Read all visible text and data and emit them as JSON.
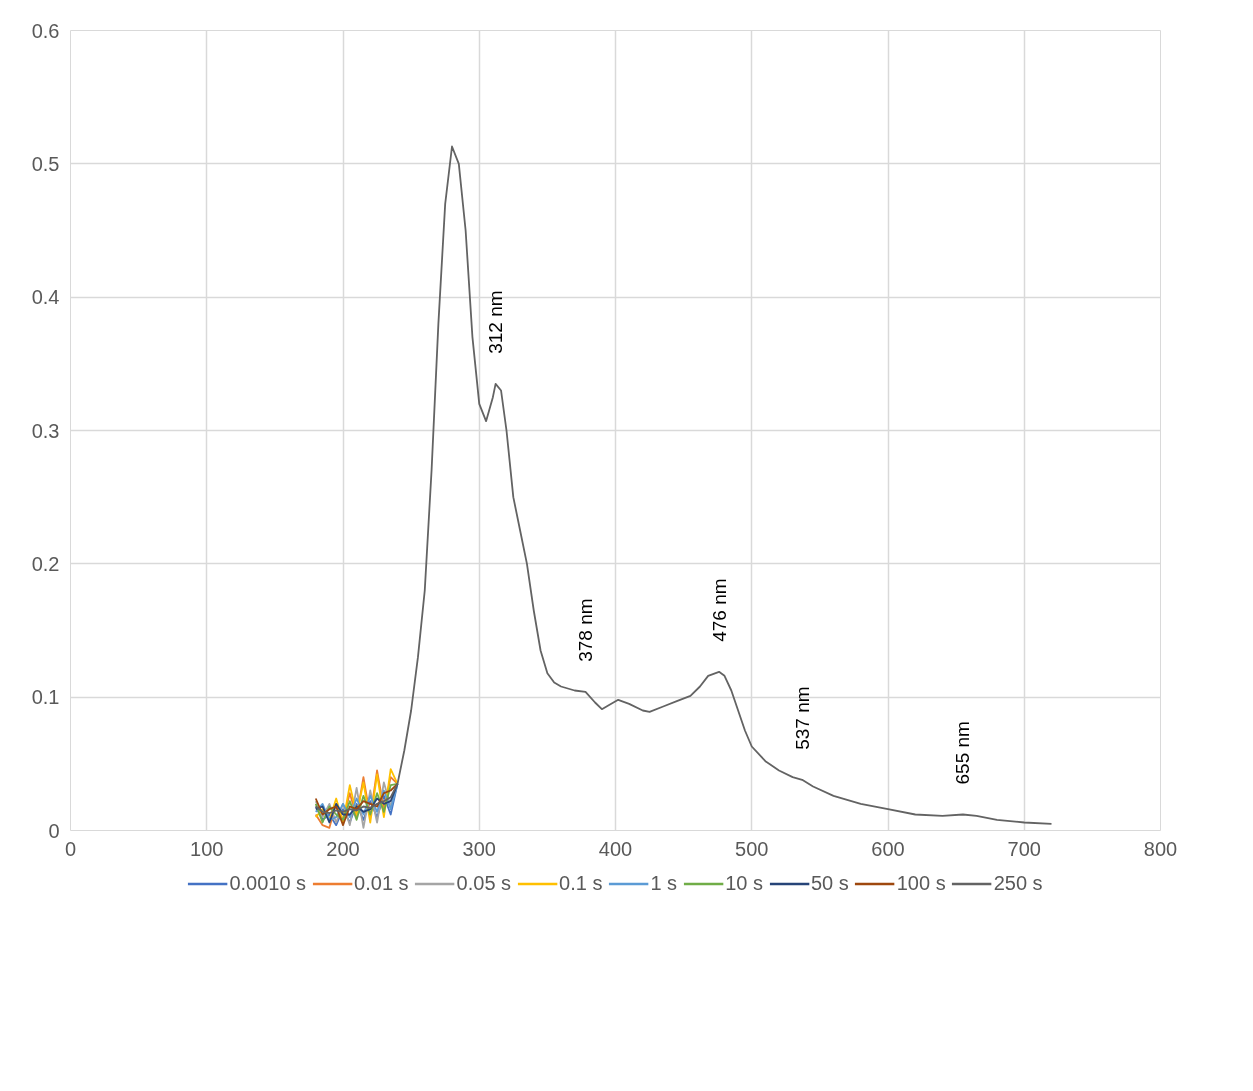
{
  "chart_data": {
    "type": "line",
    "x": [
      180,
      185,
      190,
      195,
      200,
      205,
      210,
      215,
      220,
      225,
      230,
      235,
      240,
      245,
      250,
      255,
      260,
      265,
      270,
      275,
      280,
      285,
      290,
      295,
      300,
      305,
      310,
      312,
      316,
      320,
      325,
      330,
      335,
      340,
      345,
      350,
      355,
      360,
      370,
      378,
      385,
      390,
      395,
      402,
      410,
      420,
      425,
      435,
      445,
      455,
      462,
      468,
      476,
      480,
      485,
      490,
      495,
      500,
      510,
      520,
      530,
      537,
      545,
      560,
      580,
      600,
      620,
      640,
      655,
      665,
      680,
      700,
      720
    ],
    "series": [
      {
        "name": "0.0010 s",
        "color": "#4472c4",
        "x": [
          180,
          185,
          190,
          195,
          200,
          205,
          210,
          215,
          220,
          225,
          230,
          235,
          240
        ],
        "values": [
          0.018,
          0.008,
          0.012,
          0.004,
          0.016,
          0.006,
          0.02,
          0.008,
          0.022,
          0.01,
          0.026,
          0.012,
          0.035
        ]
      },
      {
        "name": "0.01 s",
        "color": "#ed7d31",
        "x": [
          180,
          185,
          190,
          195,
          200,
          205,
          210,
          215,
          220,
          225,
          230,
          235,
          240
        ],
        "values": [
          0.012,
          0.004,
          0.002,
          0.02,
          0.008,
          0.028,
          0.01,
          0.04,
          0.01,
          0.045,
          0.016,
          0.04,
          0.035
        ]
      },
      {
        "name": "0.05 s",
        "color": "#a5a5a5",
        "x": [
          180,
          185,
          190,
          195,
          200,
          205,
          210,
          215,
          220,
          225,
          230,
          235,
          240
        ],
        "values": [
          0.022,
          0.01,
          0.02,
          0.006,
          0.02,
          0.004,
          0.032,
          0.002,
          0.03,
          0.006,
          0.036,
          0.018,
          0.035
        ]
      },
      {
        "name": "0.1 s",
        "color": "#ffc000",
        "x": [
          180,
          185,
          190,
          195,
          200,
          205,
          210,
          215,
          220,
          225,
          230,
          235,
          240
        ],
        "values": [
          0.01,
          0.016,
          0.008,
          0.024,
          0.006,
          0.034,
          0.012,
          0.036,
          0.006,
          0.042,
          0.01,
          0.046,
          0.035
        ]
      },
      {
        "name": "1 s",
        "color": "#5b9bd5",
        "x": [
          180,
          185,
          190,
          195,
          200,
          205,
          210,
          215,
          220,
          225,
          230,
          235,
          240
        ],
        "values": [
          0.014,
          0.02,
          0.008,
          0.01,
          0.02,
          0.01,
          0.024,
          0.012,
          0.026,
          0.014,
          0.03,
          0.016,
          0.035
        ]
      },
      {
        "name": "10 s",
        "color": "#70ad47",
        "x": [
          180,
          185,
          190,
          195,
          200,
          205,
          210,
          215,
          220,
          225,
          230,
          235,
          240
        ],
        "values": [
          0.02,
          0.006,
          0.018,
          0.012,
          0.008,
          0.022,
          0.008,
          0.026,
          0.012,
          0.028,
          0.014,
          0.034,
          0.035
        ]
      },
      {
        "name": "50 s",
        "color": "#264478",
        "x": [
          180,
          185,
          190,
          195,
          200,
          205,
          210,
          215,
          220,
          225,
          230,
          235,
          240
        ],
        "values": [
          0.016,
          0.018,
          0.006,
          0.02,
          0.012,
          0.012,
          0.018,
          0.014,
          0.016,
          0.024,
          0.02,
          0.022,
          0.035
        ]
      },
      {
        "name": "100 s",
        "color": "#9e480e",
        "x": [
          180,
          185,
          190,
          195,
          200,
          205,
          210,
          215,
          220,
          225,
          230,
          235,
          240
        ],
        "values": [
          0.024,
          0.012,
          0.016,
          0.018,
          0.004,
          0.018,
          0.016,
          0.022,
          0.02,
          0.018,
          0.028,
          0.03,
          0.035
        ]
      },
      {
        "name": "250 s",
        "color": "#636363",
        "values": [
          0.018,
          0.014,
          0.013,
          0.015,
          0.014,
          0.016,
          0.015,
          0.018,
          0.017,
          0.02,
          0.022,
          0.025,
          0.035,
          0.06,
          0.09,
          0.13,
          0.18,
          0.27,
          0.38,
          0.47,
          0.513,
          0.5,
          0.45,
          0.37,
          0.32,
          0.307,
          0.325,
          0.335,
          0.33,
          0.3,
          0.25,
          0.225,
          0.2,
          0.165,
          0.135,
          0.118,
          0.111,
          0.108,
          0.105,
          0.104,
          0.096,
          0.091,
          0.094,
          0.098,
          0.095,
          0.09,
          0.089,
          0.093,
          0.097,
          0.101,
          0.108,
          0.116,
          0.119,
          0.116,
          0.105,
          0.09,
          0.075,
          0.063,
          0.052,
          0.045,
          0.04,
          0.038,
          0.033,
          0.026,
          0.02,
          0.016,
          0.012,
          0.011,
          0.012,
          0.011,
          0.008,
          0.006,
          0.005
        ]
      }
    ],
    "annotations": [
      {
        "text": "312 nm",
        "x": 312,
        "y": 0.335
      },
      {
        "text": "378 nm",
        "x": 378,
        "y": 0.104
      },
      {
        "text": "476 nm",
        "x": 476,
        "y": 0.119
      },
      {
        "text": "537 nm",
        "x": 537,
        "y": 0.038
      },
      {
        "text": "655 nm",
        "x": 655,
        "y": 0.012
      }
    ],
    "xlim": [
      0,
      800
    ],
    "xticks": [
      0,
      100,
      200,
      300,
      400,
      500,
      600,
      700,
      800
    ],
    "ylim": [
      0,
      0.6
    ],
    "yticks": [
      0,
      0.1,
      0.2,
      0.3,
      0.4,
      0.5,
      0.6
    ],
    "grid": true,
    "legend": "bottom",
    "marker": "none",
    "line_style": "solid"
  }
}
